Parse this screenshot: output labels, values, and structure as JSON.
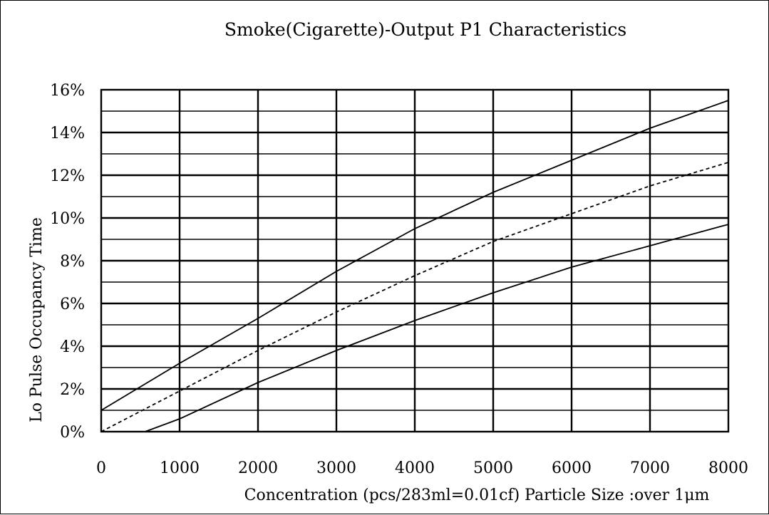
{
  "chart_data": {
    "type": "line",
    "title": "Smoke(Cigarette)-Output P1 Characteristics",
    "xlabel": "Concentration (pcs/283ml=0.01cf)  Particle Size :over 1μm",
    "ylabel": "Lo Pulse Occupancy  Time",
    "xlim": [
      0,
      8000
    ],
    "ylim": [
      0,
      16
    ],
    "x_ticks": [
      "0",
      "1000",
      "2000",
      "3000",
      "4000",
      "5000",
      "6000",
      "7000",
      "8000"
    ],
    "y_ticks": [
      "0%",
      "2%",
      "4%",
      "6%",
      "8%",
      "10%",
      "12%",
      "14%",
      "16%"
    ],
    "grid": true,
    "series": [
      {
        "style": "solid",
        "color": "#000000",
        "x": [
          0,
          1000,
          2000,
          3000,
          4000,
          5000,
          6000,
          7000,
          8000
        ],
        "y": [
          1.0,
          3.2,
          5.3,
          7.5,
          9.5,
          11.2,
          12.7,
          14.2,
          15.5
        ]
      },
      {
        "style": "dashed",
        "color": "#000000",
        "x": [
          0,
          1000,
          2000,
          3000,
          4000,
          5000,
          6000,
          7000,
          8000
        ],
        "y": [
          0.0,
          1.9,
          3.8,
          5.6,
          7.3,
          8.9,
          10.2,
          11.5,
          12.6
        ]
      },
      {
        "style": "solid",
        "color": "#000000",
        "x": [
          560,
          1000,
          2000,
          3000,
          4000,
          5000,
          6000,
          7000,
          8000
        ],
        "y": [
          0.0,
          0.6,
          2.3,
          3.8,
          5.2,
          6.5,
          7.7,
          8.7,
          9.7
        ]
      }
    ]
  }
}
